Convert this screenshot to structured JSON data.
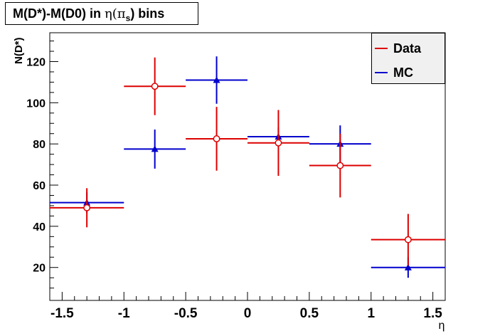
{
  "chart_data": {
    "type": "scatter",
    "title": "M(D*)-M(D0) in η(π_s) bins",
    "title_main": "M(D*)-M(D0) in ",
    "title_eta": "η(π",
    "title_sub": "s",
    "title_end": ") bins",
    "xlabel": "η",
    "ylabel": "N(D*)",
    "xlim": [
      -1.6,
      1.6
    ],
    "ylim": [
      4,
      134
    ],
    "x_ticks": [
      "-1.5",
      "-1",
      "-0.5",
      "0",
      "0.5",
      "1",
      "1.5"
    ],
    "y_ticks": [
      "20",
      "40",
      "60",
      "80",
      "100",
      "120"
    ],
    "grid": false,
    "legend_position": "top-right",
    "series": [
      {
        "name": "Data",
        "color": "#dd0000",
        "marker": "open-circle",
        "x": [
          -1.3,
          -0.75,
          -0.25,
          0.25,
          0.75,
          1.3
        ],
        "y": [
          49,
          108,
          82.5,
          80.5,
          69.5,
          33.5
        ],
        "x_low": [
          -1.6,
          -1.0,
          -0.5,
          0.0,
          0.5,
          1.0
        ],
        "x_high": [
          -1.0,
          -0.5,
          0.0,
          0.5,
          1.0,
          1.6
        ],
        "y_err": [
          9.5,
          14,
          15.5,
          16,
          15.5,
          12.5
        ]
      },
      {
        "name": "MC",
        "color": "#0000cc",
        "marker": "triangle",
        "x": [
          -1.3,
          -0.75,
          -0.25,
          0.25,
          0.75,
          1.3
        ],
        "y": [
          51.5,
          77.5,
          111,
          83.5,
          80,
          20
        ],
        "x_low": [
          -1.6,
          -1.0,
          -0.5,
          0.0,
          0.5,
          1.0
        ],
        "x_high": [
          -1.0,
          -0.5,
          0.0,
          0.5,
          1.0,
          1.6
        ],
        "y_err": [
          5,
          9.5,
          11.5,
          4.5,
          9,
          5
        ]
      }
    ]
  }
}
